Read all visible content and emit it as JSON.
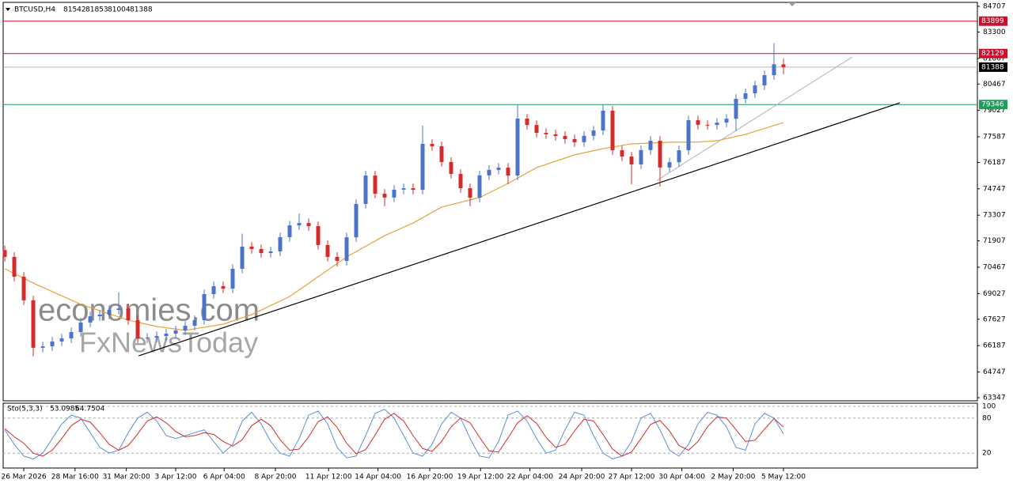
{
  "chart_data": [
    {
      "type": "candlestick",
      "title": "BTCUSD,H4",
      "open": [
        71400,
        71030,
        69950,
        68660,
        66070,
        66150,
        66410,
        66580,
        66930,
        67450,
        67790,
        67880,
        68140,
        68220,
        67580,
        66580,
        66620,
        66710,
        66840,
        67020,
        67270,
        67580,
        69000,
        69430,
        69300,
        70380,
        71590,
        71460,
        71240,
        71330,
        72110,
        72750,
        72880,
        72710,
        71680,
        71030,
        70810,
        72100,
        73920,
        75470,
        74480,
        74270,
        74700,
        74780,
        74690,
        77200,
        77070,
        76210,
        75560,
        74780,
        74260,
        75480,
        75780,
        75900,
        75470,
        78580,
        78230,
        77800,
        77720,
        77630,
        77460,
        77290,
        77640,
        77930,
        79010,
        76850,
        76510,
        76080,
        76860,
        77370,
        75910,
        76200,
        76850,
        78490,
        78240,
        78230,
        78360,
        78570,
        79660,
        79960,
        80390,
        80950,
        81542
      ],
      "high": [
        71650,
        71280,
        70200,
        68910,
        66400,
        66660,
        66830,
        67180,
        67700,
        68040,
        68130,
        68390,
        69100,
        68470,
        67830,
        66870,
        66960,
        67090,
        67270,
        67520,
        67830,
        69250,
        69680,
        69680,
        70630,
        72300,
        71840,
        71710,
        71580,
        72360,
        73000,
        73400,
        73130,
        72960,
        71930,
        71280,
        72350,
        74170,
        75720,
        75720,
        74730,
        74950,
        75030,
        75030,
        78200,
        77450,
        77320,
        76460,
        75810,
        75030,
        75730,
        76030,
        76150,
        76150,
        79350,
        78830,
        78480,
        78050,
        77970,
        77880,
        77710,
        77890,
        78180,
        79350,
        79260,
        77100,
        76760,
        77110,
        77620,
        77620,
        76450,
        77100,
        78740,
        78740,
        78490,
        78610,
        78820,
        79910,
        80210,
        80640,
        81200,
        82700,
        81853
      ],
      "low": [
        70780,
        69700,
        68410,
        65600,
        65820,
        65900,
        66160,
        66330,
        66680,
        67200,
        67540,
        67630,
        67890,
        67330,
        66330,
        66330,
        66370,
        66460,
        66590,
        66770,
        67020,
        67330,
        68750,
        69050,
        69050,
        70130,
        71210,
        70990,
        70990,
        71080,
        71860,
        72500,
        72460,
        71430,
        70780,
        70500,
        70560,
        71850,
        73670,
        74230,
        73800,
        74020,
        74450,
        74440,
        74440,
        76820,
        75960,
        75310,
        74530,
        73800,
        74010,
        75230,
        75530,
        75000,
        75220,
        77980,
        77550,
        77470,
        77380,
        77210,
        77040,
        77040,
        77390,
        77680,
        76600,
        76260,
        75000,
        75830,
        76610,
        74870,
        75660,
        75950,
        76600,
        77990,
        77980,
        77980,
        78110,
        77900,
        79410,
        79710,
        80140,
        80700,
        81004
      ],
      "close": [
        71030,
        69950,
        68660,
        66070,
        66150,
        66410,
        66580,
        66930,
        67450,
        67790,
        67880,
        68140,
        68220,
        67580,
        66580,
        66620,
        66710,
        66840,
        67020,
        67270,
        67580,
        69000,
        69430,
        69300,
        70380,
        71590,
        71460,
        71240,
        71330,
        72110,
        72750,
        72880,
        72710,
        71680,
        71030,
        70810,
        72100,
        73920,
        75470,
        74480,
        74270,
        74700,
        74780,
        74690,
        77200,
        77070,
        76210,
        75560,
        74780,
        74260,
        75480,
        75780,
        75900,
        75470,
        78580,
        78230,
        77800,
        77720,
        77630,
        77460,
        77290,
        77640,
        77930,
        79010,
        76850,
        76510,
        76080,
        76860,
        77370,
        75910,
        76200,
        76850,
        78490,
        78240,
        78230,
        78360,
        78570,
        79660,
        79960,
        80390,
        80950,
        81542,
        81388
      ],
      "up_color": "#4a73c9",
      "down_color": "#d52b2b",
      "last_color": "#000000",
      "last_line_color": "#b4b4b4",
      "moving_average": {
        "color": "#e6a23c",
        "x": [
          0,
          3,
          8,
          13,
          16,
          19,
          23,
          26,
          30,
          33,
          36,
          40,
          43,
          46,
          50,
          53,
          56,
          60,
          63,
          66,
          70,
          73,
          75,
          78,
          82
        ],
        "values": [
          70380,
          69600,
          68440,
          67580,
          67230,
          67020,
          67360,
          67880,
          68870,
          69950,
          71030,
          72190,
          72880,
          73750,
          74270,
          75040,
          75900,
          76600,
          76940,
          77200,
          77290,
          77300,
          77370,
          77720,
          78360
        ]
      },
      "trendlines": [
        {
          "color": "#000000",
          "x": [
            14.1,
            94.25
          ],
          "values": [
            65630,
            79440
          ]
        },
        {
          "color": "#bdbdbd",
          "x": [
            68.7,
            89.25
          ],
          "values": [
            75210,
            81945
          ]
        }
      ],
      "hlines": [
        {
          "value": 83899,
          "color": "#c8102e"
        },
        {
          "value": 82129,
          "color": "#c8102e"
        },
        {
          "value": 79346,
          "color": "#1f9d5a"
        }
      ],
      "xlim": [
        -0.17,
        102.42
      ],
      "ylim": [
        63347,
        84707
      ],
      "yticks": [
        84707,
        83300,
        81867,
        80467,
        79027,
        77587,
        76187,
        74747,
        73307,
        71907,
        70467,
        69027,
        67627,
        66187,
        64747,
        63347
      ],
      "xticks": [
        {
          "value": 2,
          "label": "26 Mar 2026"
        },
        {
          "value": 7.4,
          "label": "28 Mar 16:00"
        },
        {
          "value": 12.8,
          "label": "31 Mar 20:00"
        },
        {
          "value": 18,
          "label": "3 Apr 12:00"
        },
        {
          "value": 23.1,
          "label": "6 Apr 04:00"
        },
        {
          "value": 28.5,
          "label": "8 Apr 20:00"
        },
        {
          "value": 34.1,
          "label": "11 Apr 12:00"
        },
        {
          "value": 39.3,
          "label": "14 Apr 04:00"
        },
        {
          "value": 44.75,
          "label": "16 Apr 20:00"
        },
        {
          "value": 50.1,
          "label": "19 Apr 12:00"
        },
        {
          "value": 55.3,
          "label": "22 Apr 04:00"
        },
        {
          "value": 60.75,
          "label": "24 Apr 20:00"
        },
        {
          "value": 66,
          "label": "27 Apr 12:00"
        },
        {
          "value": 71.3,
          "label": "30 Apr 04:00"
        },
        {
          "value": 76.7,
          "label": "2 May 20:00"
        },
        {
          "value": 82,
          "label": "5 May 12:00"
        }
      ],
      "watermarks": [
        "economies.com",
        "FxNewsToday"
      ]
    },
    {
      "type": "line",
      "title": "Sto(5,3,3)",
      "series": [
        {
          "color": "#5b8fd9",
          "values": [
            60,
            35,
            15,
            10,
            20,
            45,
            70,
            85,
            80,
            55,
            30,
            20,
            25,
            55,
            80,
            90,
            75,
            50,
            45,
            50,
            55,
            60,
            40,
            20,
            35,
            75,
            90,
            70,
            40,
            20,
            15,
            45,
            85,
            92,
            70,
            30,
            12,
            15,
            50,
            88,
            95,
            80,
            50,
            20,
            15,
            35,
            70,
            90,
            80,
            45,
            15,
            12,
            40,
            85,
            92,
            75,
            45,
            20,
            25,
            60,
            90,
            85,
            50,
            20,
            10,
            15,
            40,
            80,
            88,
            60,
            25,
            15,
            35,
            70,
            90,
            85,
            65,
            30,
            25,
            70,
            88,
            80,
            53.0985
          ]
        },
        {
          "color": "#d52b2b",
          "values": [
            62,
            48,
            37,
            20,
            15,
            25,
            45,
            67,
            78,
            73,
            55,
            35,
            25,
            33,
            53,
            75,
            82,
            72,
            57,
            48,
            50,
            55,
            52,
            40,
            32,
            43,
            67,
            78,
            67,
            43,
            25,
            27,
            48,
            74,
            82,
            64,
            37,
            19,
            26,
            51,
            78,
            88,
            75,
            50,
            28,
            23,
            40,
            65,
            80,
            72,
            47,
            24,
            22,
            46,
            72,
            84,
            71,
            47,
            30,
            35,
            58,
            78,
            75,
            52,
            27,
            15,
            22,
            45,
            69,
            76,
            58,
            33,
            25,
            40,
            65,
            82,
            80,
            60,
            40,
            42,
            61,
            79,
            64.7504
          ]
        }
      ],
      "ylim": [
        0,
        100
      ],
      "yticks": [
        100,
        80,
        20
      ]
    }
  ]
}
